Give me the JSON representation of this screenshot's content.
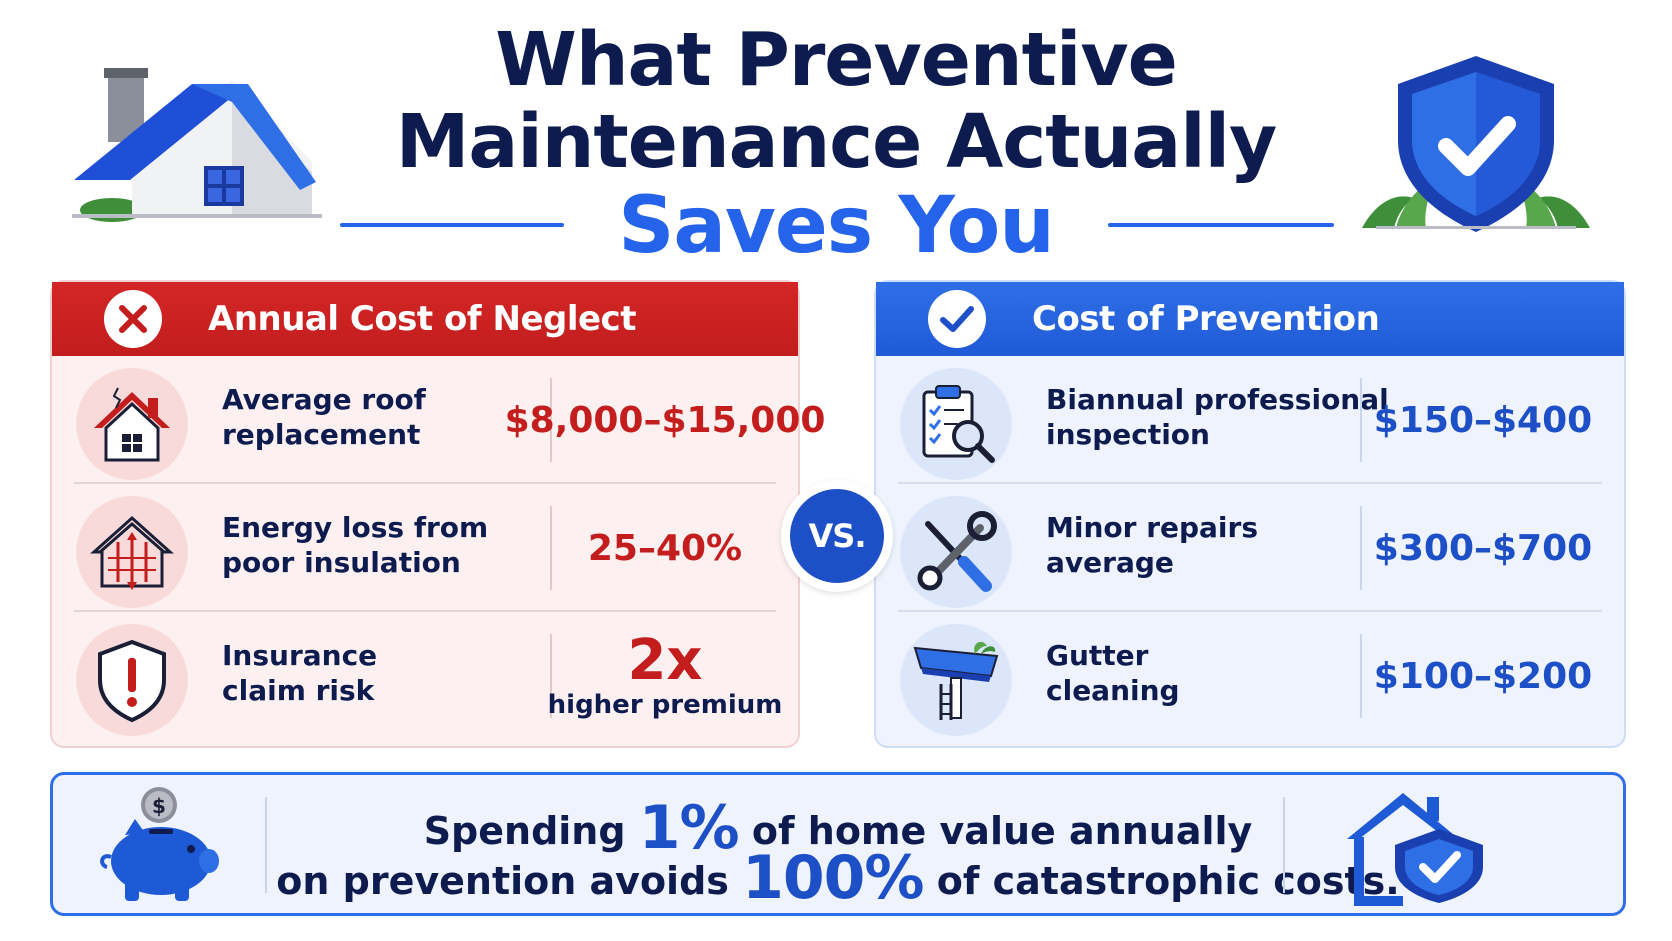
{
  "title": {
    "line1": "What Preventive",
    "line2": "Maintenance Actually",
    "line3": "Saves You"
  },
  "neglect": {
    "header": "Annual Cost of Neglect",
    "rows": [
      {
        "icon": "damaged-roof-icon",
        "label_line1": "Average roof",
        "label_line2": "replacement",
        "value": "$8,000–$15,000"
      },
      {
        "icon": "energy-loss-house-icon",
        "label_line1": "Energy loss from",
        "label_line2": "poor insulation",
        "value": "25–40%"
      },
      {
        "icon": "warning-shield-icon",
        "label_line1": "Insurance",
        "label_line2": "claim risk",
        "value": "2x",
        "value_sub": "higher premium"
      }
    ]
  },
  "vs_label": "VS.",
  "prevention": {
    "header": "Cost of Prevention",
    "rows": [
      {
        "icon": "inspection-clipboard-icon",
        "label_line1": "Biannual professional",
        "label_line2": "inspection",
        "value": "$150–$400"
      },
      {
        "icon": "wrench-screwdriver-icon",
        "label_line1": "Minor repairs",
        "label_line2": "average",
        "value": "$300–$700"
      },
      {
        "icon": "gutter-icon",
        "label_line1": "Gutter",
        "label_line2": "cleaning",
        "value": "$100–$200"
      }
    ]
  },
  "banner": {
    "line1_pre": "Spending",
    "line1_highlight": "1%",
    "line1_post": "of home value annually",
    "line2_pre": "on prevention avoids",
    "line2_highlight": "100%",
    "line2_post": "of catastrophic costs."
  },
  "colors": {
    "navy": "#0d1b4f",
    "blue": "#2563eb",
    "red": "#c41d1d"
  }
}
